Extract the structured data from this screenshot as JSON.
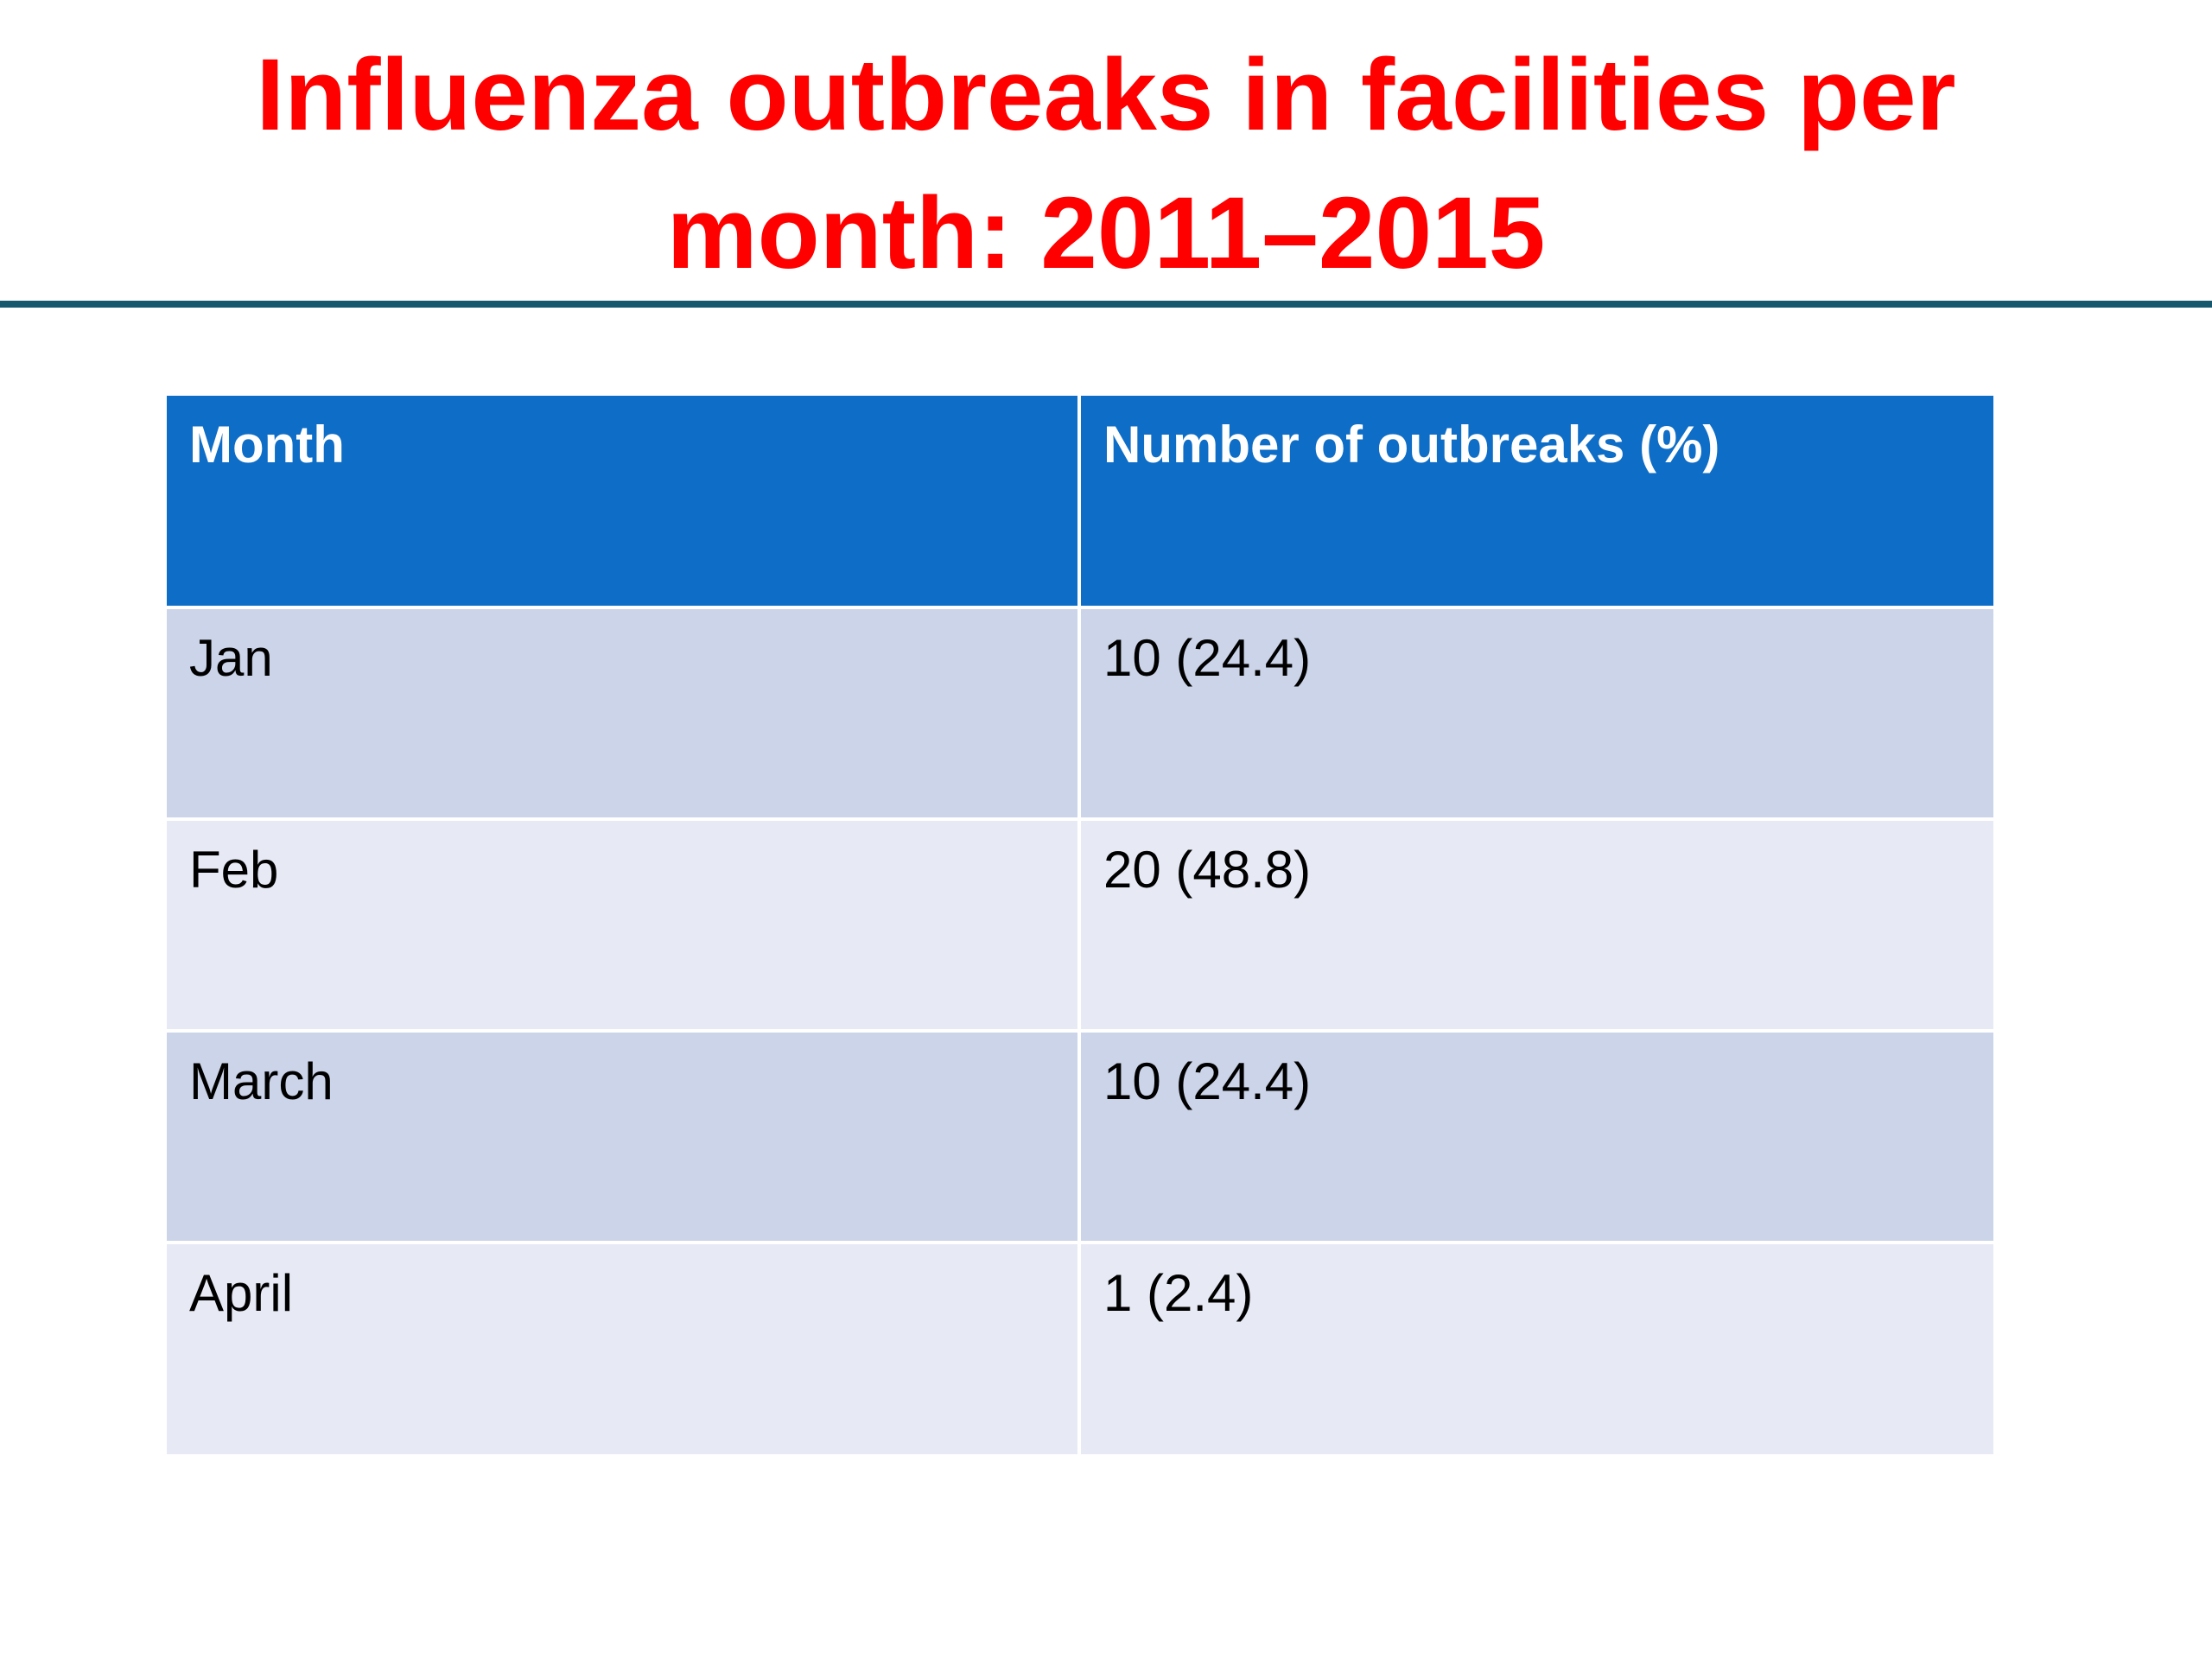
{
  "slide": {
    "title_line1": "Influenza outbreaks in facilities per",
    "title_line2": "month: 2011–2015"
  },
  "table": {
    "headers": [
      "Month",
      "Number of outbreaks (%)"
    ],
    "rows": [
      [
        "Jan",
        "10 (24.4)"
      ],
      [
        "Feb",
        "20 (48.8)"
      ],
      [
        "March",
        "10 (24.4)"
      ],
      [
        "April",
        "1 (2.4)"
      ]
    ]
  },
  "colors": {
    "title": "#ff0000",
    "rule": "#16596f",
    "header_fill": "#0e6dc6",
    "band_dark": "#cbd4e8",
    "band_light": "#e7eaf5"
  }
}
